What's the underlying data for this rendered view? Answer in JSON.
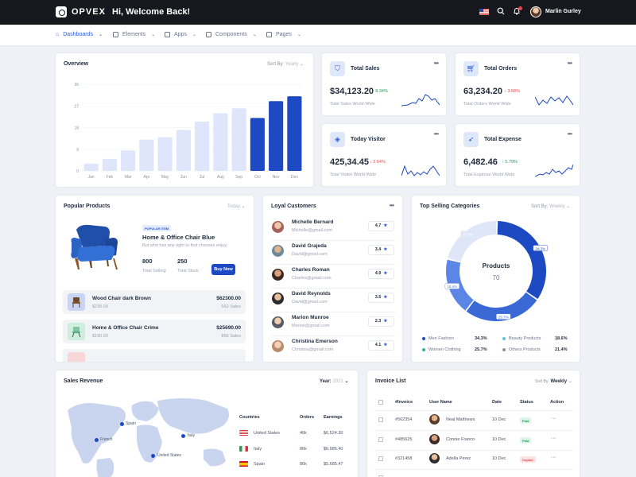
{
  "brand": {
    "name": "OPVEX"
  },
  "header": {
    "welcome": "Hi, Welcome Back!",
    "user_name": "Marlin Gurley"
  },
  "nav": [
    {
      "label": "Dashboards",
      "active": true
    },
    {
      "label": "Elements",
      "active": false
    },
    {
      "label": "Apps",
      "active": false
    },
    {
      "label": "Components",
      "active": false
    },
    {
      "label": "Pages",
      "active": false
    }
  ],
  "overview": {
    "title": "Overview",
    "sort_label": "Sort By:",
    "sort_value": "Yearly"
  },
  "chart_data": {
    "type": "bar",
    "title": "Overview",
    "categories": [
      "Jan",
      "Feb",
      "Mar",
      "Apr",
      "May",
      "Jun",
      "Jul",
      "Aug",
      "Sep",
      "Oct",
      "Nov",
      "Dec"
    ],
    "values": [
      3,
      5,
      8.5,
      13,
      14,
      17,
      20.5,
      24,
      26,
      22,
      29,
      31
    ],
    "highlighted": [
      "Oct",
      "Nov",
      "Dec"
    ],
    "yticks": [
      0,
      9,
      18,
      27,
      36
    ],
    "ylim": [
      0,
      36
    ],
    "colors": {
      "base": "#dfe5fb",
      "highlight": "#1d49c2"
    }
  },
  "stats": [
    {
      "title": "Total Sales",
      "value": "$34,123.20",
      "change": "8.34%",
      "direction": "up",
      "sub": "Total Sales World Wide",
      "icon": "shield-icon"
    },
    {
      "title": "Total Orders",
      "value": "63,234.20",
      "change": "3.68%",
      "direction": "down",
      "sub": "Total Orders World Wide",
      "icon": "cart-icon"
    },
    {
      "title": "Today Visitor",
      "value": "425,34.45",
      "change": "2.64%",
      "direction": "down",
      "sub": "Total Visitor World Wide",
      "icon": "cube-icon"
    },
    {
      "title": "Total Expense",
      "value": "6,482.46",
      "change": "5.79%",
      "direction": "up",
      "sub": "Total Expense World Wide",
      "icon": "rocket-icon"
    }
  ],
  "popular": {
    "title": "Popular Products",
    "filter": "Today",
    "badge": "POPULAR ITEM",
    "name": "Home & Office Chair Blue",
    "desc": "But who has any right to find chooses enjoy.",
    "selling_value": "800",
    "selling_label": "Total Selling",
    "stock_value": "250",
    "stock_label": "Total Stock",
    "buy_label": "Buy Now",
    "items": [
      {
        "name": "Wood Chair dark Brown",
        "price": "$230.00",
        "amount": "$62300.00",
        "sales": "562 Sales"
      },
      {
        "name": "Home & Office Chair Crime",
        "price": "$190.00",
        "amount": "$25690.00",
        "sales": "856 Sales"
      }
    ]
  },
  "customers": {
    "title": "Loyal Customers",
    "items": [
      {
        "name": "Michelle Bernard",
        "email": "Michelle@gmail.com",
        "rating": "4.7"
      },
      {
        "name": "David Grajeda",
        "email": "David@gmail.com",
        "rating": "3.4"
      },
      {
        "name": "Charles Roman",
        "email": "Charles@gmail.com",
        "rating": "4.9"
      },
      {
        "name": "David Reynolds",
        "email": "David@gmail.com",
        "rating": "3.5"
      },
      {
        "name": "Marion Munroe",
        "email": "Marion@gmail.com",
        "rating": "2.3"
      },
      {
        "name": "Christina Emerson",
        "email": "Christina@gmail.com",
        "rating": "4.1"
      }
    ]
  },
  "categories": {
    "title": "Top Selling Categories",
    "sort_label": "Sort By:",
    "sort_value": "Weekly",
    "center_label": "Products",
    "center_value": "70",
    "segments": [
      {
        "label": "Men Fashion",
        "value": "34.3%",
        "color": "#1d49c2"
      },
      {
        "label": "Women Clothing",
        "value": "25.7%",
        "color": "#3a69d6"
      },
      {
        "label": "Beauty Products",
        "value": "18.6%",
        "color": "#5c86e6"
      },
      {
        "label": "Others Products",
        "value": "21.4%",
        "color": "#dfe6f7"
      }
    ],
    "slice_labels": [
      "34.3%",
      "25.7%",
      "18.6%",
      "21.4%"
    ]
  },
  "revenue": {
    "title": "Sales Revenue",
    "year_label": "Year:",
    "year_value": "2021",
    "map_labels": [
      "Spain",
      "Italy",
      "French",
      "United States"
    ],
    "headers": [
      "Countries",
      "Orders",
      "Earnings"
    ],
    "rows": [
      {
        "country": "United States",
        "orders": "46k",
        "earnings": "$6,524.30"
      },
      {
        "country": "Italy",
        "orders": "86k",
        "earnings": "$6,985.40"
      },
      {
        "country": "Spain",
        "orders": "86k",
        "earnings": "$5,685.47"
      }
    ]
  },
  "invoice": {
    "title": "Invoice List",
    "sort_label": "Sort By:",
    "sort_value": "Weekly",
    "headers": [
      "#Invoice",
      "User Name",
      "Date",
      "Status",
      "Action"
    ],
    "rows": [
      {
        "id": "#562354",
        "user": "Neal Matthews",
        "date": "10 Dec",
        "status": "Paid"
      },
      {
        "id": "#485625",
        "user": "Connie Franco",
        "date": "10 Dec",
        "status": "Paid"
      },
      {
        "id": "#321458",
        "user": "Adella Perez",
        "date": "10 Dec",
        "status": "Unpaid"
      }
    ]
  }
}
